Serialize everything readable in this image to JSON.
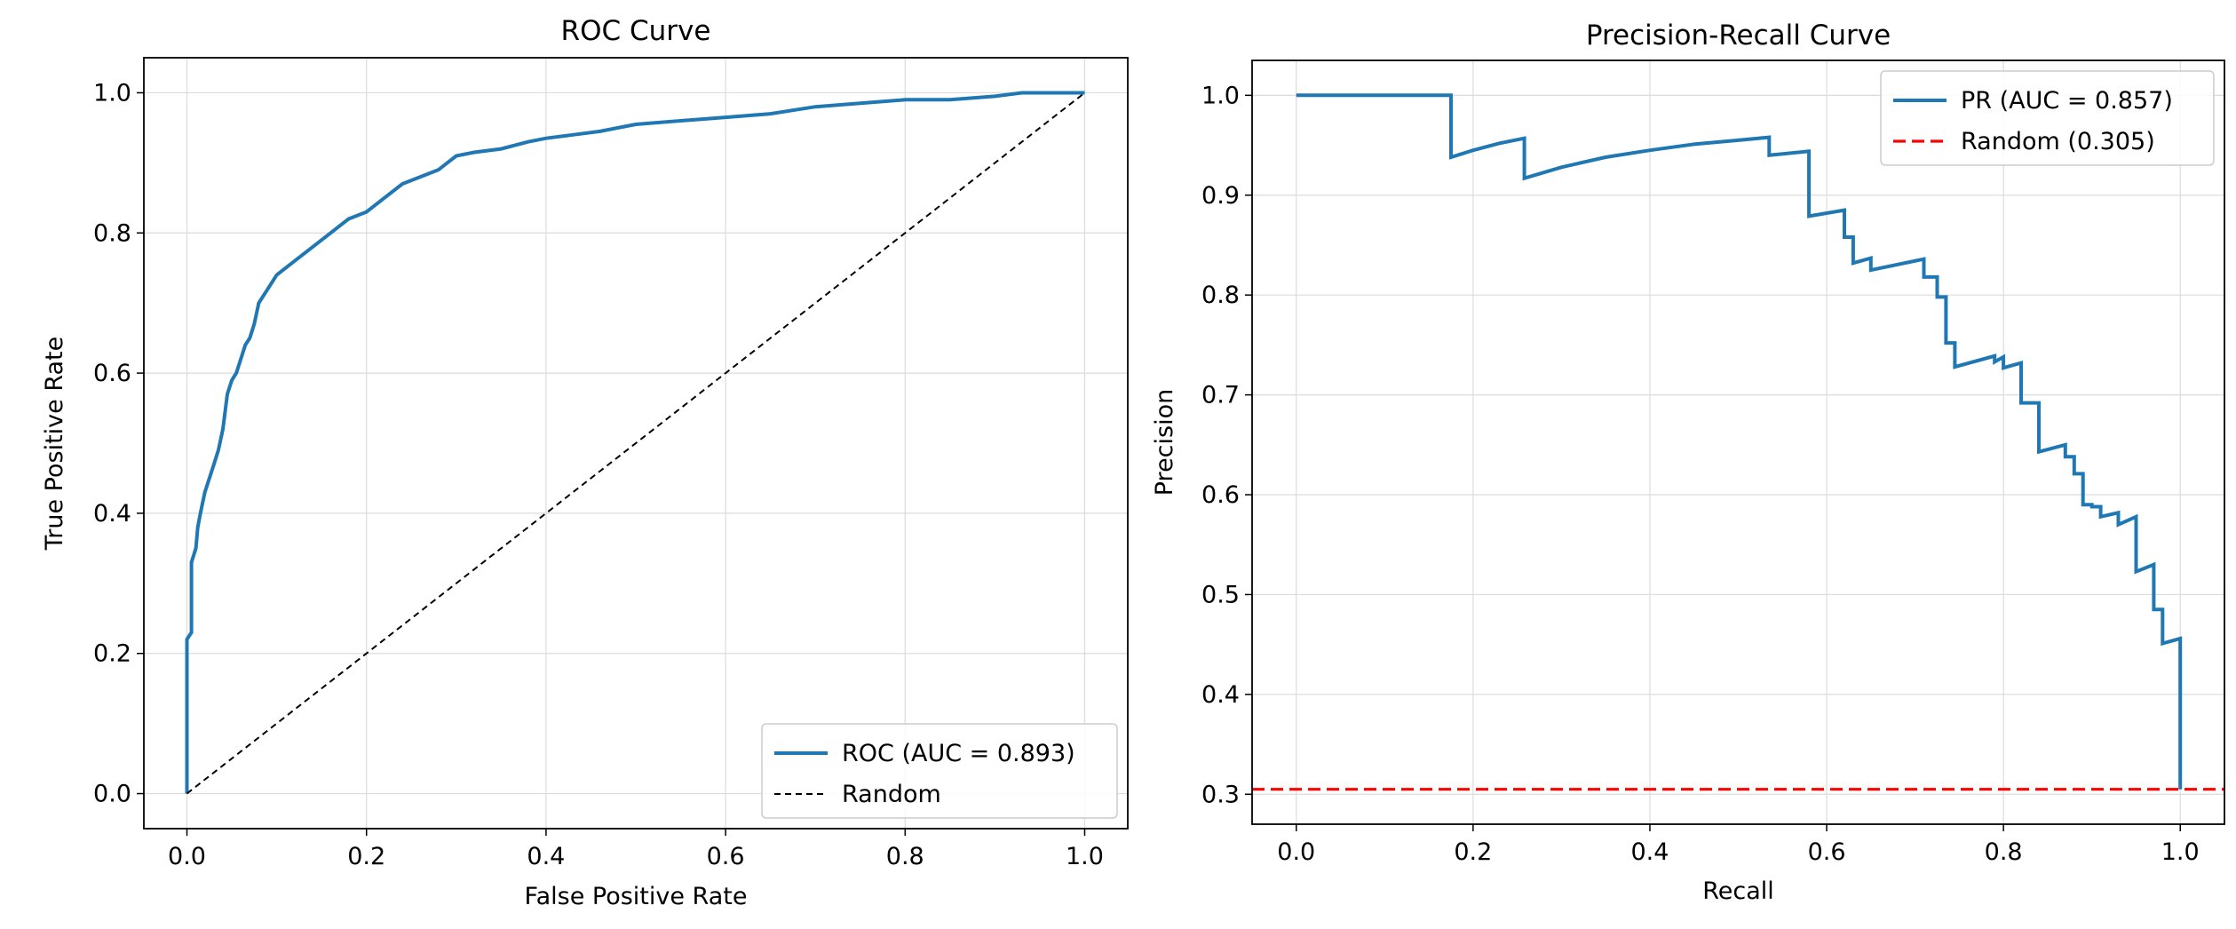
{
  "chart_data": [
    {
      "type": "line",
      "title": "ROC Curve",
      "xlabel": "False Positive Rate",
      "ylabel": "True Positive Rate",
      "xlim": [
        -0.048,
        1.048
      ],
      "ylim": [
        -0.05,
        1.05
      ],
      "xticks": [
        0.0,
        0.2,
        0.4,
        0.6,
        0.8,
        1.0
      ],
      "yticks": [
        0.0,
        0.2,
        0.4,
        0.6,
        0.8,
        1.0
      ],
      "xtick_labels": [
        "0.0",
        "0.2",
        "0.4",
        "0.6",
        "0.8",
        "1.0"
      ],
      "ytick_labels": [
        "0.0",
        "0.2",
        "0.4",
        "0.6",
        "0.8",
        "1.0"
      ],
      "grid": true,
      "legend_position": "lower-right",
      "series": [
        {
          "name": "ROC (AUC = 0.893)",
          "color": "#1f77b4",
          "style": "solid",
          "x": [
            0.0,
            0.0,
            0.005,
            0.005,
            0.01,
            0.012,
            0.015,
            0.02,
            0.025,
            0.03,
            0.035,
            0.04,
            0.045,
            0.05,
            0.055,
            0.06,
            0.065,
            0.07,
            0.075,
            0.08,
            0.09,
            0.1,
            0.11,
            0.12,
            0.14,
            0.16,
            0.18,
            0.2,
            0.22,
            0.24,
            0.26,
            0.28,
            0.3,
            0.32,
            0.35,
            0.38,
            0.4,
            0.43,
            0.46,
            0.5,
            0.55,
            0.6,
            0.65,
            0.7,
            0.75,
            0.8,
            0.85,
            0.9,
            0.93,
            0.96,
            1.0
          ],
          "y": [
            0.0,
            0.22,
            0.23,
            0.33,
            0.35,
            0.38,
            0.4,
            0.43,
            0.45,
            0.47,
            0.49,
            0.52,
            0.57,
            0.59,
            0.6,
            0.62,
            0.64,
            0.65,
            0.67,
            0.7,
            0.72,
            0.74,
            0.75,
            0.76,
            0.78,
            0.8,
            0.82,
            0.83,
            0.85,
            0.87,
            0.88,
            0.89,
            0.91,
            0.915,
            0.92,
            0.93,
            0.935,
            0.94,
            0.945,
            0.955,
            0.96,
            0.965,
            0.97,
            0.98,
            0.985,
            0.99,
            0.99,
            0.995,
            1.0,
            1.0,
            1.0
          ]
        },
        {
          "name": "Random",
          "color": "#000000",
          "style": "dashed",
          "x": [
            0.0,
            1.0
          ],
          "y": [
            0.0,
            1.0
          ]
        }
      ]
    },
    {
      "type": "line",
      "title": "Precision-Recall Curve",
      "xlabel": "Recall",
      "ylabel": "Precision",
      "xlim": [
        -0.05,
        1.05
      ],
      "ylim": [
        0.27,
        1.035
      ],
      "xticks": [
        0.0,
        0.2,
        0.4,
        0.6,
        0.8,
        1.0
      ],
      "yticks": [
        0.3,
        0.4,
        0.5,
        0.6,
        0.7,
        0.8,
        0.9,
        1.0
      ],
      "xtick_labels": [
        "0.0",
        "0.2",
        "0.4",
        "0.6",
        "0.8",
        "1.0"
      ],
      "ytick_labels": [
        "0.3",
        "0.4",
        "0.5",
        "0.6",
        "0.7",
        "0.8",
        "0.9",
        "1.0"
      ],
      "grid": true,
      "legend_position": "upper-right",
      "series": [
        {
          "name": "PR (AUC = 0.857)",
          "color": "#1f77b4",
          "style": "solid",
          "x": [
            0.0,
            0.175,
            0.175,
            0.2,
            0.23,
            0.258,
            0.258,
            0.3,
            0.35,
            0.4,
            0.45,
            0.5,
            0.535,
            0.535,
            0.58,
            0.58,
            0.62,
            0.62,
            0.63,
            0.63,
            0.65,
            0.65,
            0.71,
            0.71,
            0.725,
            0.725,
            0.735,
            0.735,
            0.745,
            0.745,
            0.79,
            0.79,
            0.8,
            0.8,
            0.82,
            0.82,
            0.84,
            0.84,
            0.87,
            0.87,
            0.88,
            0.88,
            0.89,
            0.89,
            0.9,
            0.9,
            0.91,
            0.91,
            0.93,
            0.93,
            0.95,
            0.95,
            0.97,
            0.97,
            0.98,
            0.98,
            1.0,
            1.0
          ],
          "y": [
            1.0,
            1.0,
            0.938,
            0.945,
            0.952,
            0.957,
            0.917,
            0.928,
            0.938,
            0.945,
            0.951,
            0.955,
            0.958,
            0.94,
            0.944,
            0.879,
            0.885,
            0.858,
            0.858,
            0.832,
            0.837,
            0.825,
            0.836,
            0.818,
            0.818,
            0.798,
            0.798,
            0.752,
            0.752,
            0.728,
            0.739,
            0.733,
            0.738,
            0.727,
            0.732,
            0.692,
            0.692,
            0.643,
            0.65,
            0.638,
            0.638,
            0.621,
            0.621,
            0.59,
            0.59,
            0.588,
            0.588,
            0.578,
            0.582,
            0.57,
            0.578,
            0.523,
            0.53,
            0.485,
            0.485,
            0.451,
            0.456,
            0.305
          ]
        },
        {
          "name": "Random (0.305)",
          "color": "#ff0000",
          "style": "dashed",
          "x": [
            -0.05,
            1.05
          ],
          "y": [
            0.305,
            0.305
          ]
        }
      ]
    }
  ]
}
